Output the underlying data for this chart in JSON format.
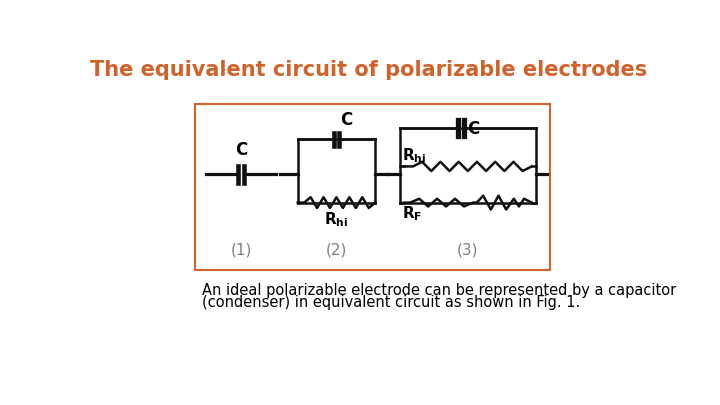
{
  "title": "The equivalent circuit of polarizable electrodes",
  "title_color": "#D2622A",
  "title_fontsize": 15,
  "body_text_line1": "An ideal polarizable electrode can be represented by a capacitor",
  "body_text_line2": "(condenser) in equivalent circuit as shown in Fig. 1.",
  "body_fontsize": 10.5,
  "background_color": "#ffffff",
  "box_color": "#D2622A",
  "label1": "(1)",
  "label2": "(2)",
  "label3": "(3)",
  "line_color": "#111111",
  "lw": 1.8
}
